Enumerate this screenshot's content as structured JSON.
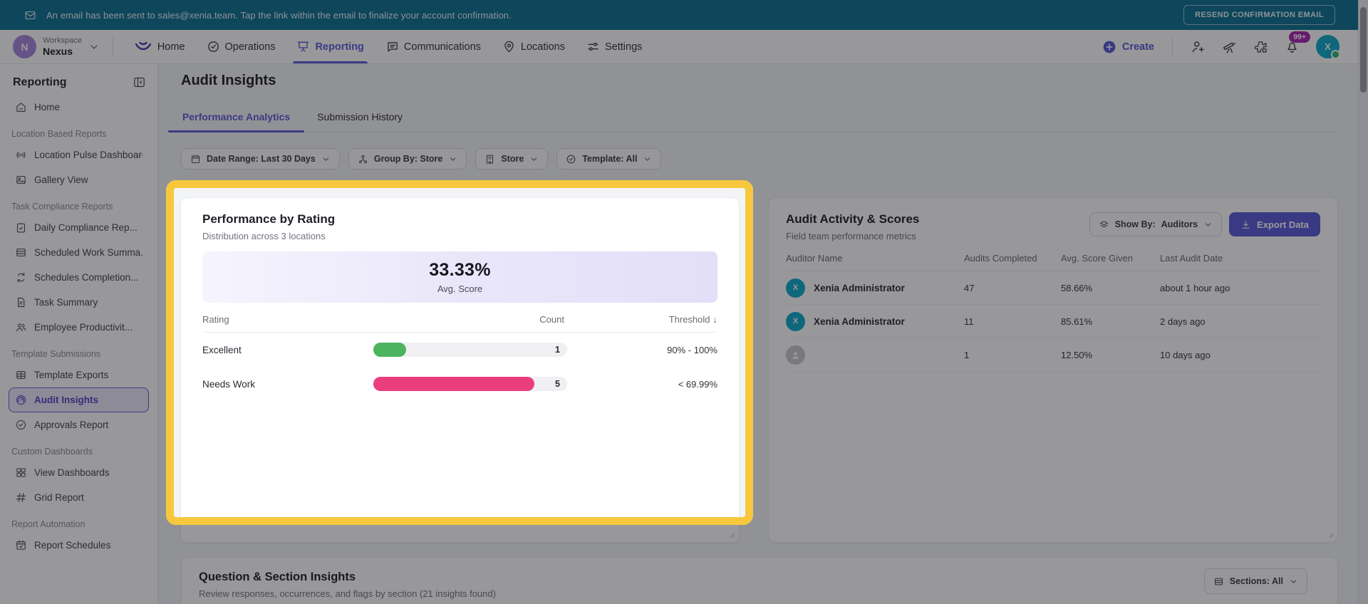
{
  "banner": {
    "message": "An email has been sent to sales@xenia.team. Tap the link within the email to finalize your account confirmation.",
    "resend_label": "RESEND CONFIRMATION EMAIL"
  },
  "topnav": {
    "workspace_label": "Workspace",
    "workspace_name": "Nexus",
    "workspace_initial": "N",
    "items": [
      {
        "icon": "xenia-logo",
        "label": "Home",
        "active": false
      },
      {
        "icon": "check-circle",
        "label": "Operations",
        "active": false
      },
      {
        "icon": "presentation",
        "label": "Reporting",
        "active": true
      },
      {
        "icon": "chat",
        "label": "Communications",
        "active": false
      },
      {
        "icon": "pin",
        "label": "Locations",
        "active": false
      },
      {
        "icon": "sliders",
        "label": "Settings",
        "active": false
      }
    ],
    "create_label": "Create",
    "notification_badge": "99+",
    "avatar_initial": "X"
  },
  "sidebar": {
    "title": "Reporting",
    "items": [
      {
        "type": "item",
        "icon": "home",
        "label": "Home",
        "selected": false
      },
      {
        "type": "section",
        "label": "Location Based Reports"
      },
      {
        "type": "item",
        "icon": "broadcast",
        "label": "Location Pulse Dashboard",
        "selected": false
      },
      {
        "type": "item",
        "icon": "image",
        "label": "Gallery View",
        "selected": false
      },
      {
        "type": "section",
        "label": "Task Compliance Reports"
      },
      {
        "type": "item",
        "icon": "clipboard-check",
        "label": "Daily Compliance Rep...",
        "selected": false
      },
      {
        "type": "item",
        "icon": "rows",
        "label": "Scheduled Work Summa...",
        "selected": false
      },
      {
        "type": "item",
        "icon": "refresh",
        "label": "Schedules Completion...",
        "selected": false
      },
      {
        "type": "item",
        "icon": "document",
        "label": "Task Summary",
        "selected": false
      },
      {
        "type": "item",
        "icon": "people",
        "label": "Employee Productivit...",
        "selected": false
      },
      {
        "type": "section",
        "label": "Template Submissions"
      },
      {
        "type": "item",
        "icon": "table",
        "label": "Template Exports",
        "selected": false
      },
      {
        "type": "item",
        "icon": "gauge",
        "label": "Audit Insights",
        "selected": true
      },
      {
        "type": "item",
        "icon": "badge-check",
        "label": "Approvals Report",
        "selected": false
      },
      {
        "type": "section",
        "label": "Custom Dashboards"
      },
      {
        "type": "item",
        "icon": "grid",
        "label": "View Dashboards",
        "selected": false
      },
      {
        "type": "item",
        "icon": "hash",
        "label": "Grid Report",
        "selected": false
      },
      {
        "type": "section",
        "label": "Report Automation"
      },
      {
        "type": "item",
        "icon": "calendar-check",
        "label": "Report Schedules",
        "selected": false
      }
    ]
  },
  "page": {
    "title": "Audit Insights",
    "tabs": [
      {
        "label": "Performance Analytics",
        "active": true
      },
      {
        "label": "Submission History",
        "active": false
      }
    ],
    "filters": [
      {
        "icon": "calendar",
        "label": "Date Range: Last 30 Days"
      },
      {
        "icon": "group",
        "label": "Group By: Store"
      },
      {
        "icon": "building",
        "label": "Store"
      },
      {
        "icon": "check-circle",
        "label": "Template: All"
      }
    ]
  },
  "rating_card": {
    "title": "Performance by Rating",
    "subtitle": "Distribution across 3 locations",
    "avg_score": "33.33%",
    "avg_score_label": "Avg. Score",
    "columns": {
      "rating": "Rating",
      "count": "Count",
      "threshold": "Threshold"
    },
    "sort_arrow": "↓",
    "rows": [
      {
        "rating": "Excellent",
        "count": "1",
        "threshold": "90% - 100%",
        "fill_percent": 17,
        "color": "#4CB45F"
      },
      {
        "rating": "Needs Work",
        "count": "5",
        "threshold": "< 69.99%",
        "fill_percent": 83,
        "color": "#EA3E7C"
      }
    ]
  },
  "activity_card": {
    "title": "Audit Activity & Scores",
    "subtitle": "Field team performance metrics",
    "show_by_label": "Show By:",
    "show_by_value": "Auditors",
    "export_label": "Export Data",
    "columns": [
      "Auditor Name",
      "Audits Completed",
      "Avg. Score Given",
      "Last Audit Date"
    ],
    "rows": [
      {
        "avatar_initial": "X",
        "name": "Xenia Administrator",
        "audits_completed": "47",
        "avg_score": "58.66%",
        "last_audit": "about 1 hour ago"
      },
      {
        "avatar_initial": "X",
        "name": "Xenia Administrator",
        "audits_completed": "11",
        "avg_score": "85.61%",
        "last_audit": "2 days ago"
      },
      {
        "avatar_initial": "",
        "name": "",
        "audits_completed": "1",
        "avg_score": "12.50%",
        "last_audit": "10 days ago"
      }
    ]
  },
  "insights_card": {
    "title": "Question & Section Insights",
    "subtitle": "Review responses, occurrences, and flags by section (21 insights found)",
    "sections_label": "Sections: All"
  },
  "colors": {
    "accent": "#5E5ADB",
    "banner_teal": "#0E7090",
    "highlight_yellow": "#F7C83D",
    "positive_green": "#4CB45F",
    "negative_pink": "#EA3E7C",
    "avatar_teal": "#0FA9CB",
    "badge_magenta": "#A824AE",
    "export_button": "#5B58D8"
  }
}
